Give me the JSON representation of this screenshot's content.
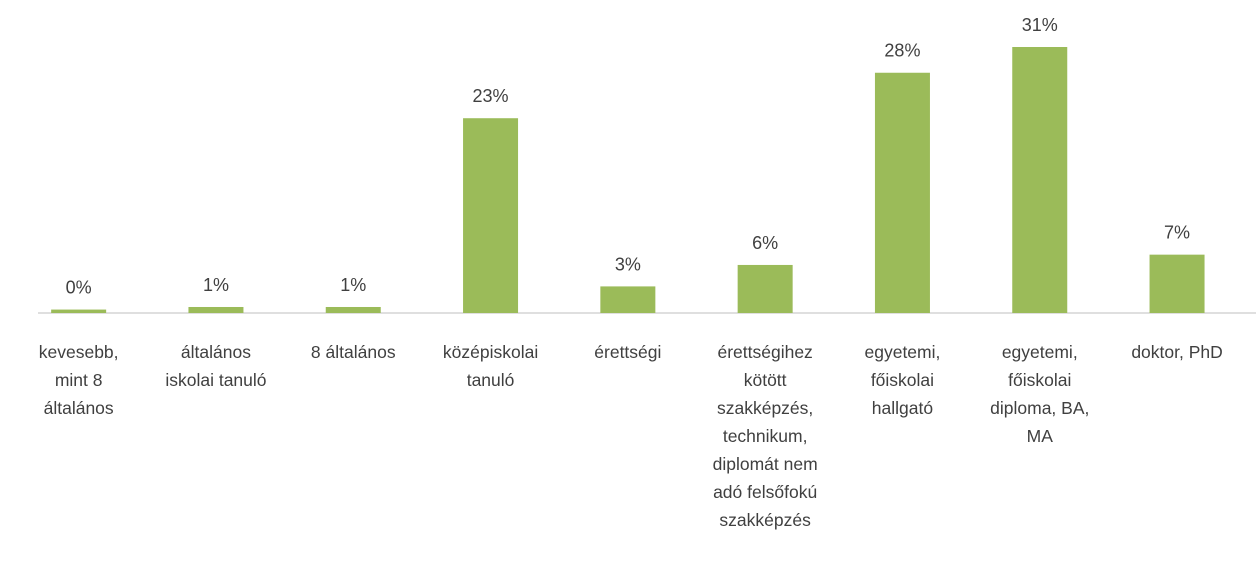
{
  "chart_data": {
    "type": "bar",
    "categories": [
      "kevesebb, mint 8 általános",
      "általános iskolai tanuló",
      "8 általános",
      "középiskolai tanuló",
      "érettségi",
      "érettségihez kötött szakképzés, technikum, diplomát nem adó felsőfokú szakképzés",
      "egyetemi, főiskolai hallgató",
      "egyetemi, főiskolai diploma, BA, MA",
      "doktor, PhD"
    ],
    "values": [
      0.4,
      0.7,
      0.7,
      22.7,
      3.1,
      5.6,
      28,
      31,
      6.8
    ],
    "value_labels": [
      "0%",
      "1%",
      "1%",
      "23%",
      "3%",
      "6%",
      "28%",
      "31%",
      "7%"
    ],
    "color": "#9bbb59"
  }
}
